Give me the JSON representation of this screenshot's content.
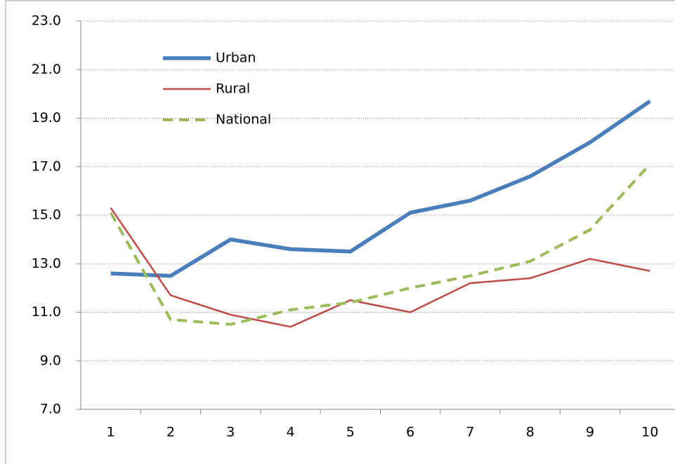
{
  "chart_data": {
    "type": "line",
    "categories": [
      "1",
      "2",
      "3",
      "4",
      "5",
      "6",
      "7",
      "8",
      "9",
      "10"
    ],
    "series": [
      {
        "name": "Urban",
        "color": "#4a7ebb",
        "dashed": false,
        "values": [
          12.6,
          12.5,
          14.0,
          13.6,
          13.5,
          15.1,
          15.6,
          16.6,
          18.0,
          19.7
        ]
      },
      {
        "name": "Rural",
        "color": "#be4b48",
        "dashed": false,
        "values": [
          15.3,
          11.7,
          10.9,
          10.4,
          11.5,
          11.0,
          12.2,
          12.4,
          13.2,
          12.7
        ]
      },
      {
        "name": "National",
        "color": "#9bbb59",
        "dashed": true,
        "values": [
          15.1,
          10.7,
          10.5,
          11.1,
          11.4,
          12.0,
          12.5,
          13.1,
          14.4,
          17.1
        ]
      }
    ],
    "ylim": [
      7,
      23
    ],
    "yticks": [
      {
        "value": 7,
        "label": "7.0"
      },
      {
        "value": 9,
        "label": "9.0"
      },
      {
        "value": 11,
        "label": "11.0"
      },
      {
        "value": 13,
        "label": "13.0"
      },
      {
        "value": 15,
        "label": "15.0"
      },
      {
        "value": 17,
        "label": "17.0"
      },
      {
        "value": 19,
        "label": "19.0"
      },
      {
        "value": 21,
        "label": "21.0"
      },
      {
        "value": 23,
        "label": "23.0"
      }
    ],
    "grid": true,
    "legend": "upper left"
  }
}
